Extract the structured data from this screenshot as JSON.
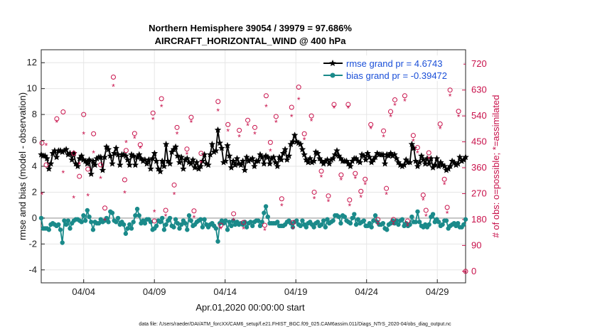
{
  "chart_data": {
    "type": "line",
    "title": "Northern Hemisphere 39054 / 39979 = 97.686%",
    "subtitle": "AIRCRAFT_HORIZONTAL_WIND @ 400 hPa",
    "xlabel": "Apr.01,2020 00:00:00 start",
    "ylabel": "rmse and bias (model - observation)",
    "y2label": "# of obs: o=possible; *=assimilated",
    "footnote": "data file: /Users/raeder/DAI/ATM_forcXX/CAM6_setup/f.e21.FHIST_BGC.f09_025.CAM6assim.011/Diags_NTrS_2020-04/obs_diag_output.nc",
    "xlim": [
      1,
      31
    ],
    "ylim": [
      -5,
      13
    ],
    "y2lim": [
      -40,
      770
    ],
    "xticks": [
      4,
      9,
      14,
      19,
      24,
      29
    ],
    "xtick_labels": [
      "04/04",
      "04/09",
      "04/14",
      "04/19",
      "04/24",
      "04/29"
    ],
    "yticks": [
      -4,
      -2,
      0,
      2,
      4,
      6,
      8,
      10,
      12
    ],
    "y2ticks": [
      0,
      90,
      180,
      270,
      360,
      450,
      540,
      630,
      720
    ],
    "grid": true,
    "legend_position": "top-right",
    "colors": {
      "rmse": "#000000",
      "bias": "#1a8a8a",
      "obs": "#c8104a",
      "legend_text": "#1a4fd8"
    },
    "series": [
      {
        "name": "rmse grand pr = 4.6743",
        "axis": "left",
        "marker": "star",
        "values": [
          4.9,
          4.8,
          4.8,
          4.6,
          3.8,
          4.2,
          5.0,
          5.2,
          4.7,
          5.2,
          5.2,
          5.1,
          5.2,
          5.3,
          4.9,
          5.0,
          4.5,
          5.0,
          4.2,
          4.0,
          4.6,
          4.8,
          4.5,
          4.4,
          4.2,
          4.5,
          3.4,
          4.4,
          4.1,
          4.6,
          4.7,
          4.7,
          3.7,
          4.7,
          5.5,
          5.3,
          4.8,
          4.2,
          5.0,
          5.4,
          4.9,
          4.1,
          4.9,
          4.9,
          4.8,
          4.5,
          4.1,
          4.9,
          4.8,
          4.1,
          4.7,
          4.9,
          4.6,
          4.4,
          4.5,
          4.2,
          4.5,
          3.8,
          4.6,
          5.0,
          4.4,
          3.8,
          3.6,
          4.4,
          4.0,
          5.7,
          4.4,
          4.2,
          5.1,
          5.3,
          5.5,
          4.8,
          4.3,
          4.7,
          3.8,
          4.5,
          4.6,
          4.3,
          4.2,
          4.5,
          3.9,
          4.3,
          3.8,
          4.0,
          4.4,
          4.9,
          4.2,
          4.1,
          4.9,
          5.7,
          5.1,
          5.2,
          6.8,
          5.8,
          5.4,
          4.3,
          4.4,
          5.6,
          4.8,
          3.9,
          4.4,
          4.1,
          4.6,
          4.2,
          4.1,
          4.4,
          3.7,
          4.7,
          4.4,
          4.5,
          4.6,
          4.0,
          4.4,
          4.4,
          4.9,
          4.7,
          4.2,
          4.8,
          4.7,
          4.2,
          4.6,
          4.7,
          4.3,
          4.0,
          4.7,
          4.5,
          5.0,
          5.3,
          4.5,
          4.8,
          5.7,
          5.9,
          6.4,
          5.9,
          5.8,
          5.7,
          5.3,
          4.9,
          4.5,
          4.3,
          4.6,
          4.3,
          4.4,
          5.1,
          5.0,
          4.6,
          4.4,
          4.2,
          4.4,
          4.5,
          4.2,
          4.5,
          4.6,
          4.9,
          5.2,
          4.8,
          4.6,
          4.4,
          4.4,
          4.4,
          4.2,
          4.0,
          4.4,
          4.6,
          4.6,
          4.4,
          4.3,
          4.9,
          4.8,
          4.5,
          5.0,
          4.7,
          4.3,
          4.5,
          4.7,
          5.0,
          4.9,
          4.9,
          4.9,
          4.2,
          4.9,
          4.8,
          5.0,
          4.8,
          4.9,
          4.6,
          4.3,
          4.1,
          4.0,
          4.1,
          4.5,
          4.3,
          4.3,
          5.7,
          5.4,
          4.4,
          4.0,
          4.3,
          4.8,
          4.5,
          4.2,
          4.6,
          4.2,
          4.6,
          3.9,
          4.1,
          4.6,
          4.0,
          4.3,
          4.1,
          4.0,
          3.7,
          3.8,
          4.0,
          4.4,
          4.3,
          4.1,
          4.2,
          4.7,
          4.4,
          4.5,
          4.7
        ]
      },
      {
        "name": "bias grand pr = -0.39472",
        "axis": "left",
        "marker": "dot",
        "values": [
          0.0,
          -0.8,
          -0.8,
          -0.8,
          -0.9,
          -0.5,
          -0.4,
          -0.5,
          -0.6,
          -0.5,
          -0.9,
          -1.9,
          -0.2,
          -0.5,
          -0.2,
          -0.8,
          -0.4,
          -0.2,
          -0.1,
          -0.1,
          -0.2,
          -0.3,
          0.2,
          -0.2,
          0.6,
          0.1,
          -0.3,
          -0.9,
          -0.3,
          -0.4,
          -0.4,
          -0.1,
          -0.3,
          -0.2,
          0.0,
          -0.3,
          0.5,
          0.4,
          -0.2,
          -0.3,
          0.0,
          -0.5,
          -0.3,
          -0.5,
          -1.2,
          -0.8,
          -0.5,
          -0.8,
          -0.3,
          0.2,
          0.7,
          0.2,
          -0.4,
          -0.2,
          -0.4,
          -0.1,
          -0.1,
          -0.3,
          -0.9,
          -0.8,
          -0.6,
          -0.2,
          -0.3,
          0.0,
          -0.9,
          -0.5,
          -0.2,
          0.0,
          -0.6,
          -0.7,
          -0.1,
          -0.4,
          -0.8,
          -0.5,
          -0.2,
          -0.4,
          -0.9,
          0.2,
          -0.2,
          -0.6,
          -0.5,
          -0.3,
          -0.2,
          -0.1,
          -0.7,
          -0.1,
          -0.5,
          -0.7,
          -0.5,
          -0.4,
          -0.6,
          -0.8,
          -1.8,
          -0.4,
          -0.2,
          -0.4,
          -0.2,
          -0.9,
          -0.3,
          -0.6,
          -0.2,
          -0.5,
          -0.3,
          -0.5,
          -0.4,
          -0.5,
          -0.3,
          -0.7,
          -0.4,
          -0.3,
          -0.6,
          -0.3,
          -0.2,
          -0.2,
          -0.6,
          -0.3,
          0.4,
          0.9,
          0.1,
          -0.4,
          -0.4,
          -0.4,
          -0.4,
          -0.3,
          -0.6,
          -0.6,
          -0.6,
          -0.5,
          -0.3,
          -0.2,
          -0.4,
          -0.7,
          -0.3,
          -0.2,
          -0.5,
          -0.6,
          -0.2,
          -0.5,
          -0.7,
          -0.4,
          -0.3,
          -0.5,
          -0.7,
          -0.4,
          -0.3,
          -0.6,
          -0.5,
          -0.2,
          -0.7,
          -0.1,
          -0.4,
          -0.3,
          -0.2,
          0.2,
          0.2,
          0.1,
          -0.4,
          0.2,
          0.1,
          -0.2,
          -0.3,
          -0.4,
          0.0,
          0.3,
          -0.5,
          -0.1,
          -0.4,
          -0.3,
          -0.2,
          -0.6,
          -0.6,
          -0.4,
          -0.7,
          -0.2,
          0.2,
          -0.3,
          -0.5,
          -0.5,
          -0.4,
          -0.8,
          -0.9,
          -0.5,
          -0.4,
          -0.2,
          -0.4,
          -0.2,
          -0.5,
          -0.2,
          -0.1,
          -0.6,
          -0.4,
          -0.6,
          -0.5,
          0.1,
          -0.3,
          -0.3,
          0.5,
          -0.3,
          -0.6,
          -0.7,
          -0.5,
          -0.7,
          -0.5,
          0.1,
          0.3,
          -0.3,
          -0.1,
          -0.3,
          -0.6,
          -0.5,
          -0.2,
          -0.2,
          -0.8,
          -0.6,
          -0.5,
          -0.4,
          -0.6,
          -0.4,
          -0.7,
          -0.7,
          -0.5,
          -0.1
        ]
      },
      {
        "name": "possible",
        "axis": "right",
        "marker": "circle",
        "points": [
          [
            1.05,
            446
          ],
          [
            1.35,
            370
          ],
          [
            2.1,
            530
          ],
          [
            2.55,
            554
          ],
          [
            3.3,
            410
          ],
          [
            3.7,
            330
          ],
          [
            4.0,
            545
          ],
          [
            4.3,
            355
          ],
          [
            4.7,
            478
          ],
          [
            5.2,
            370
          ],
          [
            5.5,
            220
          ],
          [
            6.1,
            675
          ],
          [
            6.9,
            318
          ],
          [
            7.0,
            420
          ],
          [
            7.6,
            479
          ],
          [
            8.0,
            440
          ],
          [
            8.9,
            550
          ],
          [
            9.0,
            175
          ],
          [
            9.5,
            600
          ],
          [
            9.8,
            212
          ],
          [
            10.4,
            300
          ],
          [
            10.6,
            500
          ],
          [
            11.3,
            425
          ],
          [
            11.6,
            535
          ],
          [
            11.8,
            210
          ],
          [
            12.3,
            410
          ],
          [
            13.5,
            590
          ],
          [
            13.7,
            160
          ],
          [
            14.2,
            510
          ],
          [
            14.6,
            200
          ],
          [
            15.0,
            490
          ],
          [
            15.3,
            170
          ],
          [
            15.6,
            525
          ],
          [
            16.1,
            500
          ],
          [
            16.8,
            160
          ],
          [
            16.9,
            610
          ],
          [
            17.2,
            448
          ],
          [
            17.6,
            538
          ],
          [
            18.0,
            252
          ],
          [
            18.7,
            570
          ],
          [
            18.8,
            170
          ],
          [
            19.2,
            640
          ],
          [
            19.6,
            478
          ],
          [
            20.1,
            540
          ],
          [
            20.3,
            275
          ],
          [
            20.8,
            348
          ],
          [
            21.3,
            262
          ],
          [
            21.7,
            580
          ],
          [
            22.2,
            335
          ],
          [
            22.7,
            580
          ],
          [
            22.8,
            248
          ],
          [
            23.2,
            340
          ],
          [
            23.6,
            278
          ],
          [
            23.9,
            320
          ],
          [
            24.3,
            510
          ],
          [
            24.8,
            180
          ],
          [
            25.2,
            488
          ],
          [
            25.4,
            288
          ],
          [
            25.7,
            555
          ],
          [
            25.9,
            180
          ],
          [
            26.0,
            596
          ],
          [
            26.7,
            610
          ],
          [
            26.9,
            175
          ],
          [
            27.3,
            472
          ],
          [
            27.6,
            430
          ],
          [
            28.0,
            265
          ],
          [
            28.2,
            212
          ],
          [
            28.4,
            412
          ],
          [
            29.2,
            512
          ],
          [
            29.5,
            320
          ],
          [
            29.7,
            222
          ],
          [
            29.9,
            630
          ],
          [
            30.2,
            680
          ],
          [
            30.5,
            556
          ],
          [
            31.0,
            0
          ]
        ]
      },
      {
        "name": "assimilated",
        "axis": "right",
        "marker": "asterisk",
        "points": [
          [
            1.05,
            270
          ],
          [
            1.35,
            440
          ],
          [
            2.1,
            520
          ],
          [
            2.55,
            345
          ],
          [
            3.3,
            258
          ],
          [
            3.7,
            375
          ],
          [
            4.0,
            480
          ],
          [
            4.3,
            265
          ],
          [
            4.7,
            415
          ],
          [
            5.2,
            325
          ],
          [
            5.5,
            180
          ],
          [
            6.1,
            645
          ],
          [
            6.9,
            275
          ],
          [
            7.0,
            450
          ],
          [
            7.6,
            465
          ],
          [
            8.0,
            430
          ],
          [
            8.9,
            530
          ],
          [
            9.0,
            210
          ],
          [
            9.5,
            575
          ],
          [
            9.8,
            195
          ],
          [
            10.4,
            270
          ],
          [
            10.6,
            480
          ],
          [
            11.3,
            410
          ],
          [
            11.6,
            520
          ],
          [
            11.8,
            190
          ],
          [
            12.3,
            380
          ],
          [
            13.5,
            560
          ],
          [
            13.7,
            150
          ],
          [
            14.2,
            490
          ],
          [
            14.6,
            180
          ],
          [
            15.0,
            470
          ],
          [
            15.3,
            150
          ],
          [
            15.6,
            510
          ],
          [
            16.1,
            480
          ],
          [
            16.8,
            145
          ],
          [
            16.9,
            575
          ],
          [
            17.2,
            420
          ],
          [
            17.6,
            520
          ],
          [
            18.0,
            230
          ],
          [
            18.7,
            540
          ],
          [
            18.8,
            150
          ],
          [
            19.2,
            600
          ],
          [
            19.6,
            460
          ],
          [
            20.1,
            525
          ],
          [
            20.3,
            255
          ],
          [
            20.8,
            330
          ],
          [
            21.3,
            245
          ],
          [
            21.7,
            570
          ],
          [
            22.2,
            320
          ],
          [
            22.7,
            570
          ],
          [
            22.8,
            230
          ],
          [
            23.2,
            325
          ],
          [
            23.6,
            260
          ],
          [
            23.9,
            305
          ],
          [
            24.3,
            498
          ],
          [
            24.8,
            165
          ],
          [
            25.2,
            470
          ],
          [
            25.4,
            270
          ],
          [
            25.7,
            540
          ],
          [
            25.9,
            165
          ],
          [
            26.0,
            580
          ],
          [
            26.7,
            595
          ],
          [
            26.9,
            160
          ],
          [
            27.3,
            455
          ],
          [
            27.6,
            415
          ],
          [
            28.0,
            250
          ],
          [
            28.2,
            195
          ],
          [
            28.4,
            395
          ],
          [
            29.2,
            498
          ],
          [
            29.5,
            305
          ],
          [
            29.7,
            205
          ],
          [
            29.9,
            612
          ],
          [
            30.2,
            665
          ],
          [
            30.5,
            540
          ],
          [
            31.0,
            0
          ]
        ]
      }
    ]
  }
}
